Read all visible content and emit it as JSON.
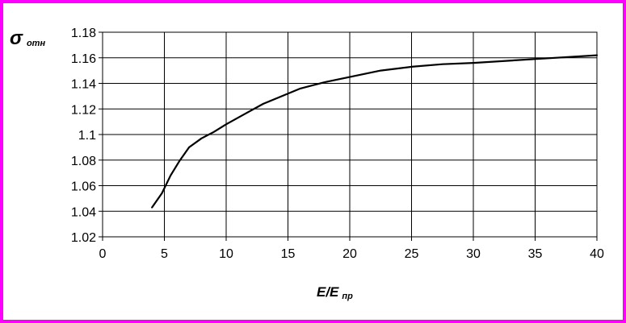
{
  "chart_data": {
    "type": "line",
    "title": "",
    "ylabel": {
      "symbol": "σ",
      "subscript": "отн"
    },
    "xlabel": {
      "main": "E/E",
      "subscript": "пр"
    },
    "xlim": [
      0,
      40
    ],
    "ylim": [
      1.02,
      1.18
    ],
    "x_ticks": [
      "0",
      "5",
      "10",
      "15",
      "20",
      "25",
      "30",
      "35",
      "40"
    ],
    "y_ticks": [
      "1.18",
      "1.16",
      "1.14",
      "1.12",
      "1.1",
      "1.08",
      "1.06",
      "1.04",
      "1.02"
    ],
    "grid": true,
    "legend": "none",
    "line_color": "#000000",
    "frame_color": "#ff00ff",
    "series": [
      {
        "x": [
          4,
          4.8,
          5.5,
          6.2,
          7,
          8,
          9,
          10,
          11.5,
          13,
          14.5,
          16,
          18,
          20,
          22.5,
          25,
          27.5,
          30,
          35,
          40
        ],
        "y": [
          1.043,
          1.054,
          1.068,
          1.079,
          1.09,
          1.097,
          1.102,
          1.108,
          1.116,
          1.124,
          1.13,
          1.136,
          1.141,
          1.145,
          1.15,
          1.153,
          1.155,
          1.156,
          1.159,
          1.162
        ]
      }
    ]
  }
}
